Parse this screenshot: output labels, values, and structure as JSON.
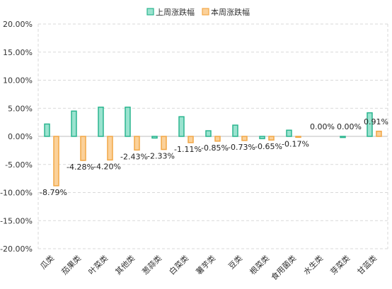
{
  "chart_data": {
    "type": "bar",
    "categories": [
      "瓜类",
      "茄果类",
      "叶菜类",
      "其他类",
      "葱蒜类",
      "白菜类",
      "薯芋类",
      "豆类",
      "根菜类",
      "食用菌类",
      "水生类",
      "芽菜类",
      "甘蓝类"
    ],
    "series": [
      {
        "name": "上周涨跌幅",
        "values": [
          2.2,
          4.5,
          5.2,
          5.2,
          -0.3,
          3.5,
          1.0,
          2.0,
          -0.4,
          1.1,
          0.0,
          -0.2,
          4.2
        ],
        "color": "#9ae3cf",
        "stroke": "#2bb58f"
      },
      {
        "name": "本周涨跌幅",
        "values": [
          -8.79,
          -4.28,
          -4.2,
          -2.43,
          -2.33,
          -1.11,
          -0.85,
          -0.73,
          -0.65,
          -0.17,
          0.0,
          0.0,
          0.91
        ],
        "color": "#fbd19a",
        "stroke": "#f2a746"
      }
    ],
    "data_labels": [
      "-8.79%",
      "-4.28%",
      "-4.20%",
      "-2.43%",
      "-2.33%",
      "-1.11%",
      "-0.85%",
      "-0.73%",
      "-0.65%",
      "-0.17%",
      "0.00%",
      "0.00%",
      "0.91%"
    ],
    "y_ticks": [
      "20.00%",
      "15.00%",
      "10.00%",
      "5.00%",
      "0.00%",
      "-5.00%",
      "-10.00%",
      "-15.00%",
      "-20.00%"
    ],
    "ylim": [
      -20,
      20
    ],
    "y_tick_values": [
      20,
      15,
      10,
      5,
      0,
      -5,
      -10,
      -15,
      -20
    ],
    "grid": true,
    "legend_position": "top-center"
  }
}
